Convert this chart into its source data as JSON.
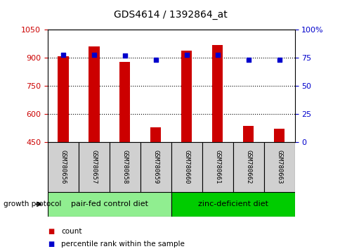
{
  "title": "GDS4614 / 1392864_at",
  "samples": [
    "GSM780656",
    "GSM780657",
    "GSM780658",
    "GSM780659",
    "GSM780660",
    "GSM780661",
    "GSM780662",
    "GSM780663"
  ],
  "counts": [
    910,
    960,
    880,
    530,
    940,
    970,
    535,
    520
  ],
  "percentiles": [
    78,
    78,
    77,
    73,
    78,
    78,
    73,
    73
  ],
  "y_min": 450,
  "y_max": 1050,
  "y_ticks": [
    450,
    600,
    750,
    900,
    1050
  ],
  "y_tick_labels": [
    "450",
    "600",
    "750",
    "900",
    "1050"
  ],
  "y2_ticks": [
    0,
    25,
    50,
    75,
    100
  ],
  "y2_tick_labels": [
    "0",
    "25",
    "50",
    "75",
    "100%"
  ],
  "bar_color": "#cc0000",
  "dot_color": "#0000cc",
  "groups": [
    {
      "label": "pair-fed control diet",
      "indices": [
        0,
        1,
        2,
        3
      ],
      "color": "#90ee90"
    },
    {
      "label": "zinc-deficient diet",
      "indices": [
        4,
        5,
        6,
        7
      ],
      "color": "#00cc00"
    }
  ],
  "group_label": "growth protocol",
  "legend_count_label": "count",
  "legend_percentile_label": "percentile rank within the sample",
  "bg_color": "#ffffff",
  "tick_label_color_left": "#cc0000",
  "tick_label_color_right": "#0000cc",
  "sample_box_color": "#d0d0d0",
  "bar_width": 0.35
}
